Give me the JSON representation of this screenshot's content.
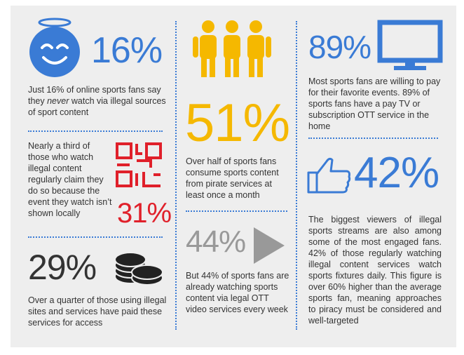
{
  "blocks": [
    {
      "stat": "16%",
      "text_before": "Just 16% of online sports fans say they ",
      "emphasis": "never",
      "text_after": " watch via illegal sources of sport content"
    },
    {
      "stat": "31%",
      "text": "Nearly a third of those who watch illegal content regularly claim they do so because the event they watch isn’t shown locally"
    },
    {
      "stat": "29%",
      "text": "Over a quarter of those using illegal sites and services have paid these services for access"
    },
    {
      "stat": "51%",
      "text": "Over half of sports fans consume sports content from pirate services at least once a month"
    },
    {
      "stat": "44%",
      "text": "But 44% of sports fans are already watching sports content via legal OTT video services every week"
    },
    {
      "stat": "89%",
      "text": "Most sports fans are willing to pay for their favorite events. 89% of sports fans have a pay TV or subscription OTT service in the home"
    },
    {
      "stat": "42%",
      "text": "The biggest viewers of illegal sports streams are also among some of the most engaged fans. 42% of those regularly watching illegal content services watch sports fixtures daily. This figure is over 60% higher than the average sports fan, meaning approaches to piracy must be considered and well-targeted"
    }
  ]
}
